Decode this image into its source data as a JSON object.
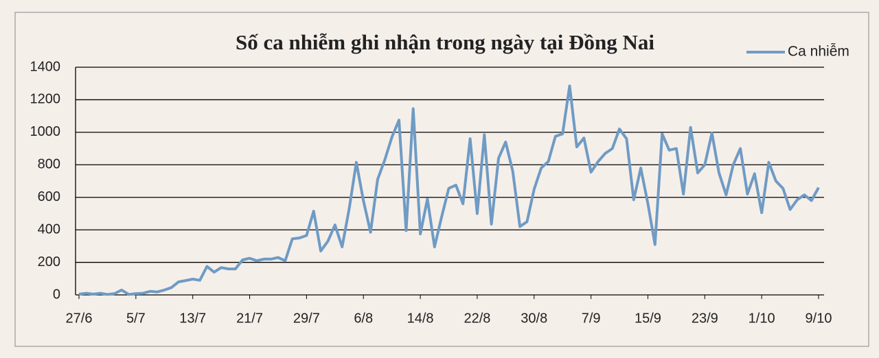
{
  "chart_data": {
    "type": "line",
    "title": "Số ca nhiễm ghi nhận trong ngày tại Đồng Nai",
    "categories": [
      "27/6",
      null,
      null,
      null,
      null,
      null,
      null,
      null,
      "5/7",
      null,
      null,
      null,
      null,
      null,
      null,
      null,
      "13/7",
      null,
      null,
      null,
      null,
      null,
      null,
      null,
      "21/7",
      null,
      null,
      null,
      null,
      null,
      null,
      null,
      "29/7",
      null,
      null,
      null,
      null,
      null,
      null,
      null,
      "6/8",
      null,
      null,
      null,
      null,
      null,
      null,
      null,
      "14/8",
      null,
      null,
      null,
      null,
      null,
      null,
      null,
      "22/8",
      null,
      null,
      null,
      null,
      null,
      null,
      null,
      "30/8",
      null,
      null,
      null,
      null,
      null,
      null,
      null,
      "7/9",
      null,
      null,
      null,
      null,
      null,
      null,
      null,
      "15/9",
      null,
      null,
      null,
      null,
      null,
      null,
      null,
      "23/9",
      null,
      null,
      null,
      null,
      null,
      null,
      null,
      "1/10",
      null,
      null,
      null,
      null,
      null,
      null,
      null,
      "9/10"
    ],
    "series": [
      {
        "name": "Ca nhiễm",
        "color": "#6f9bc4",
        "values": [
          5,
          10,
          5,
          10,
          3,
          8,
          30,
          3,
          8,
          10,
          22,
          18,
          30,
          45,
          80,
          88,
          97,
          90,
          175,
          140,
          168,
          160,
          160,
          215,
          225,
          210,
          220,
          220,
          230,
          210,
          345,
          350,
          365,
          515,
          270,
          330,
          430,
          295,
          530,
          815,
          580,
          385,
          710,
          830,
          970,
          1075,
          395,
          1145,
          375,
          590,
          295,
          480,
          655,
          675,
          560,
          960,
          500,
          985,
          435,
          840,
          940,
          760,
          420,
          450,
          650,
          780,
          820,
          975,
          990,
          1285,
          910,
          965,
          755,
          820,
          870,
          900,
          1020,
          960,
          585,
          780,
          560,
          310,
          990,
          890,
          900,
          620,
          1030,
          750,
          800,
          995,
          750,
          615,
          800,
          900,
          620,
          745,
          505,
          815,
          700,
          655,
          525,
          585,
          615,
          580,
          660
        ]
      }
    ],
    "ylim": [
      0,
      1400
    ],
    "yticks": [
      0,
      200,
      400,
      600,
      800,
      1000,
      1200,
      1400
    ],
    "grid": true,
    "legend": "top-right"
  }
}
